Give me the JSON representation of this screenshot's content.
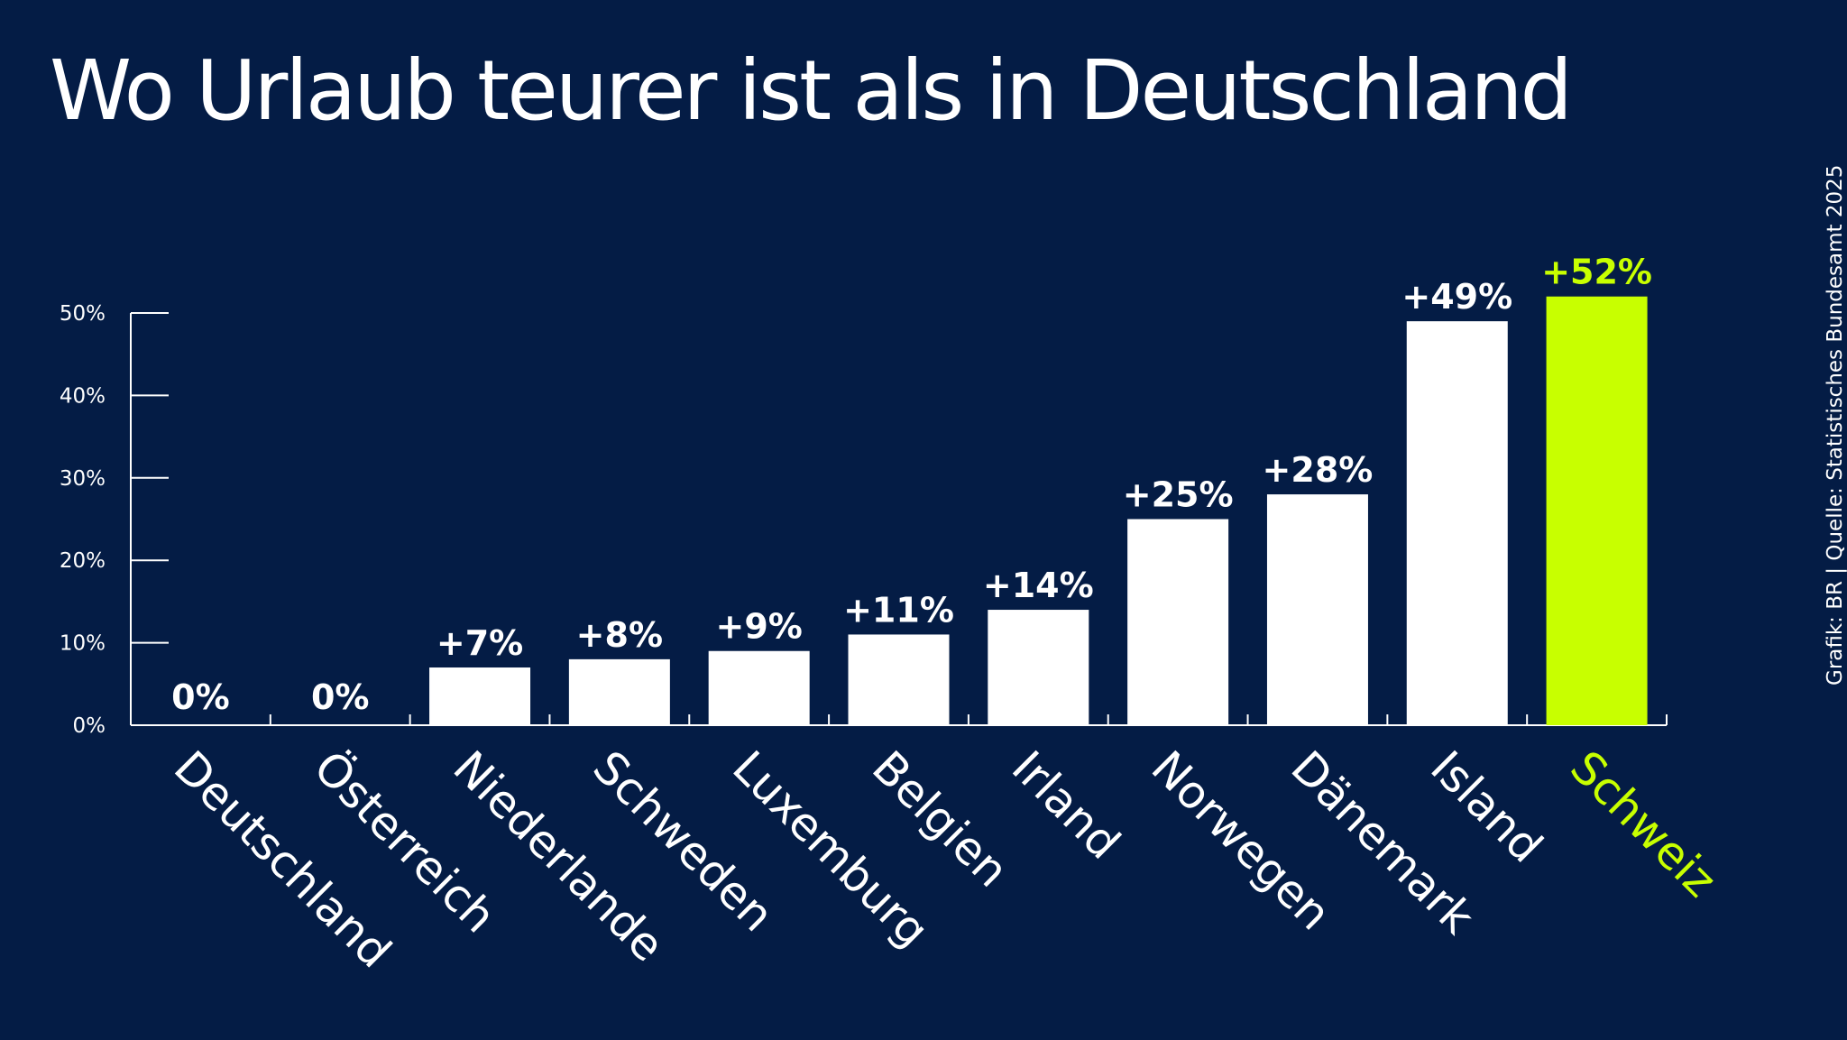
{
  "title": "Wo Urlaub teurer ist als in Deutschland",
  "source": "Grafik: BR | Quelle: Statistisches Bundesamt 2025",
  "colors": {
    "background": "#041c45",
    "bar": "#ffffff",
    "highlight": "#c8ff00",
    "text": "#ffffff"
  },
  "chart_data": {
    "type": "bar",
    "title": "Wo Urlaub teurer ist als in Deutschland",
    "xlabel": "",
    "ylabel": "",
    "ylim": [
      0,
      50
    ],
    "yticks": [
      0,
      10,
      20,
      30,
      40,
      50
    ],
    "ytick_labels": [
      "0%",
      "10%",
      "20%",
      "30%",
      "40%",
      "50%"
    ],
    "categories": [
      "Deutschland",
      "Österreich",
      "Niederlande",
      "Schweden",
      "Luxemburg",
      "Belgien",
      "Irland",
      "Norwegen",
      "Dänemark",
      "Island",
      "Schweiz"
    ],
    "values": [
      0,
      0,
      7,
      8,
      9,
      11,
      14,
      25,
      28,
      49,
      52
    ],
    "value_labels": [
      "0%",
      "0%",
      "+7%",
      "+8%",
      "+9%",
      "+11%",
      "+14%",
      "+25%",
      "+28%",
      "+49%",
      "+52%"
    ],
    "highlight_category": "Schweiz",
    "grid": false
  }
}
